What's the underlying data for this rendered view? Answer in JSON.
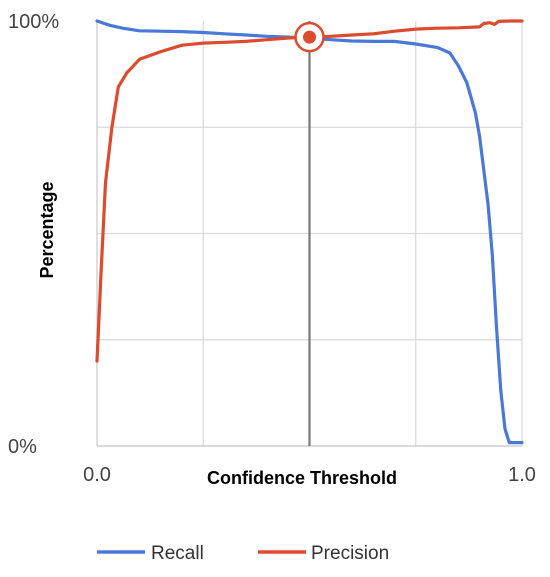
{
  "chart_data": {
    "type": "line",
    "xlabel": "Confidence Threshold",
    "ylabel": "Percentage",
    "xlim": [
      0,
      1
    ],
    "ylim": [
      0,
      100
    ],
    "x_tick_labels": [
      {
        "value": 0,
        "label": "0.0"
      },
      {
        "value": 1,
        "label": "1.0"
      }
    ],
    "y_tick_labels": [
      {
        "value": 0,
        "label": "0%"
      },
      {
        "value": 100,
        "label": "100%"
      }
    ],
    "gridlines_x": [
      0.25,
      0.5,
      0.75,
      1.0
    ],
    "gridlines_y": [
      25,
      50,
      75
    ],
    "grid": true,
    "legend_position": "bottom",
    "threshold_marker": {
      "x": 0.5,
      "y": 96.2
    },
    "series": [
      {
        "name": "Recall",
        "color": "#4a78d6",
        "points": [
          [
            0.0,
            100
          ],
          [
            0.03,
            99
          ],
          [
            0.06,
            98.3
          ],
          [
            0.1,
            97.7
          ],
          [
            0.15,
            97.6
          ],
          [
            0.2,
            97.5
          ],
          [
            0.25,
            97.3
          ],
          [
            0.3,
            97.0
          ],
          [
            0.35,
            96.7
          ],
          [
            0.4,
            96.4
          ],
          [
            0.45,
            96.2
          ],
          [
            0.5,
            96.0
          ],
          [
            0.55,
            95.6
          ],
          [
            0.6,
            95.3
          ],
          [
            0.65,
            95.2
          ],
          [
            0.7,
            95.2
          ],
          [
            0.75,
            94.6
          ],
          [
            0.8,
            93.8
          ],
          [
            0.805,
            93.6
          ],
          [
            0.83,
            92.5
          ],
          [
            0.85,
            89.5
          ],
          [
            0.87,
            85.5
          ],
          [
            0.89,
            78.5
          ],
          [
            0.9,
            73
          ],
          [
            0.92,
            57
          ],
          [
            0.93,
            45
          ],
          [
            0.94,
            28
          ],
          [
            0.95,
            13
          ],
          [
            0.96,
            4
          ],
          [
            0.97,
            0.8
          ],
          [
            0.98,
            0.8
          ],
          [
            1.0,
            0.8
          ]
        ]
      },
      {
        "name": "Precision",
        "color": "#dd4b2e",
        "points": [
          [
            0.0,
            20
          ],
          [
            0.01,
            42
          ],
          [
            0.02,
            62
          ],
          [
            0.035,
            75
          ],
          [
            0.05,
            84.5
          ],
          [
            0.07,
            87.8
          ],
          [
            0.1,
            91
          ],
          [
            0.15,
            92.8
          ],
          [
            0.2,
            94.3
          ],
          [
            0.25,
            94.8
          ],
          [
            0.3,
            95
          ],
          [
            0.35,
            95.2
          ],
          [
            0.4,
            95.6
          ],
          [
            0.45,
            96
          ],
          [
            0.5,
            96.2
          ],
          [
            0.55,
            96.4
          ],
          [
            0.6,
            96.7
          ],
          [
            0.65,
            97
          ],
          [
            0.7,
            97.6
          ],
          [
            0.75,
            98.1
          ],
          [
            0.8,
            98.3
          ],
          [
            0.85,
            98.4
          ],
          [
            0.9,
            98.6
          ],
          [
            0.91,
            99.4
          ],
          [
            0.925,
            99.6
          ],
          [
            0.935,
            99.2
          ],
          [
            0.945,
            99.9
          ],
          [
            0.97,
            100
          ],
          [
            1.0,
            100
          ]
        ]
      }
    ]
  }
}
